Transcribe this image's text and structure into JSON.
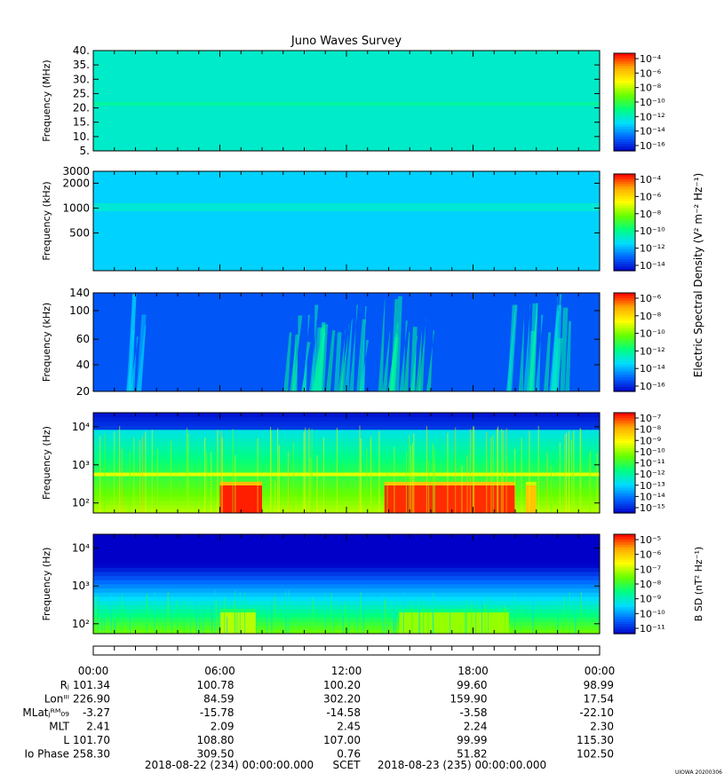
{
  "title": "Juno Waves Survey",
  "footer_stamp": "UIOWA 20200306",
  "shared_colorbar_label": "Electric Spectral Density (V² m⁻² Hz⁻¹)",
  "colors": {
    "colormap": [
      "#0000c8",
      "#0066ff",
      "#00ddff",
      "#00ff80",
      "#66ff00",
      "#ffff00",
      "#ffaa00",
      "#ff0000"
    ]
  },
  "chart_data": [
    {
      "type": "heatmap",
      "panel": "HFR high",
      "ylabel": "Frequency (MHz)",
      "yticks": [
        "40.",
        "35.",
        "30.",
        "25.",
        "20.",
        "15.",
        "10.",
        "5."
      ],
      "ylim": [
        3.8,
        41
      ],
      "colorbar": {
        "ticks": [
          "10⁻⁴",
          "10⁻⁶",
          "10⁻⁸",
          "10⁻¹⁰",
          "10⁻¹²",
          "10⁻¹⁴",
          "10⁻¹⁶"
        ],
        "range_exp": [
          -17,
          -4
        ]
      },
      "base_level": -12.5,
      "bands": [
        {
          "y": 21.2,
          "width": 1.3,
          "level": -11.8
        }
      ]
    },
    {
      "type": "heatmap",
      "panel": "HFR low",
      "ylabel": "Frequency (kHz)",
      "yticks": [
        "3000",
        "2000",
        "1000",
        "500"
      ],
      "ylim": [
        140,
        3000
      ],
      "colorbar": {
        "ticks": [
          "10⁻⁴",
          "10⁻⁶",
          "10⁻⁸",
          "10⁻¹⁰",
          "10⁻¹²",
          "10⁻¹⁴"
        ],
        "range_exp": [
          -15,
          -4
        ]
      },
      "base_level": -12.0,
      "bands": [
        {
          "y": 1000,
          "width": 250,
          "level": -11.3
        }
      ]
    },
    {
      "type": "heatmap",
      "panel": "LFR high",
      "ylabel": "Frequency (kHz)",
      "yticks": [
        "140",
        "100",
        "60",
        "40",
        "20"
      ],
      "ylim": [
        20,
        140
      ],
      "colorbar": {
        "ticks": [
          "10⁻⁶",
          "10⁻⁸",
          "10⁻¹⁰",
          "10⁻¹²",
          "10⁻¹⁴",
          "10⁻¹⁶"
        ],
        "range_exp": [
          -16,
          -6
        ]
      },
      "base_level": -14.8,
      "bursts": [
        {
          "t_start": 8.8,
          "t_end": 13.0,
          "level": -12.5
        },
        {
          "t_start": 13.5,
          "t_end": 16.0,
          "level": -12.2
        },
        {
          "t_start": 19.5,
          "t_end": 22.5,
          "level": -12.8
        },
        {
          "t_start": 1.5,
          "t_end": 2.5,
          "level": -13.5
        }
      ]
    },
    {
      "type": "heatmap",
      "panel": "LFR low",
      "ylabel": "Frequency (Hz)",
      "yticks": [
        "10⁴",
        "10³",
        "10²"
      ],
      "ylim": [
        50,
        20000
      ],
      "colorbar": {
        "ticks": [
          "10⁻⁷",
          "10⁻⁸",
          "10⁻⁹",
          "10⁻¹⁰",
          "10⁻¹¹",
          "10⁻¹²",
          "10⁻¹³",
          "10⁻¹⁴",
          "10⁻¹⁵"
        ],
        "range_exp": [
          -15,
          -7
        ]
      },
      "base_level": -11.5,
      "line": {
        "y": 500,
        "level": -9.5
      },
      "hot_regions": [
        {
          "t_start": 6.0,
          "t_end": 8.0,
          "level": -7.2
        },
        {
          "t_start": 13.8,
          "t_end": 20.0,
          "level": -7.3
        },
        {
          "t_start": 20.5,
          "t_end": 21.0,
          "level": -8.5
        }
      ]
    },
    {
      "type": "heatmap",
      "panel": "Magnetic",
      "ylabel": "Frequency (Hz)",
      "yticks": [
        "10⁴",
        "10³",
        "10²"
      ],
      "ylim": [
        50,
        20000
      ],
      "colorbar": {
        "label": "B SD (nT² Hz⁻¹)",
        "ticks": [
          "10⁻⁵",
          "10⁻⁶",
          "10⁻⁷",
          "10⁻⁸",
          "10⁻⁹",
          "10⁻¹⁰",
          "10⁻¹¹"
        ],
        "range_exp": [
          -11,
          -4.5
        ]
      },
      "base_level": -10.3,
      "hot_regions": [
        {
          "t_start": 6.0,
          "t_end": 7.7,
          "level": -6.8
        },
        {
          "t_start": 14.5,
          "t_end": 19.7,
          "level": -7.0
        }
      ]
    }
  ],
  "time_axis": {
    "ticks": [
      "00:00",
      "06:00",
      "12:00",
      "18:00",
      "00:00"
    ],
    "hours": [
      0,
      6,
      12,
      18,
      24
    ]
  },
  "ephemeris": {
    "labels": [
      "Rⱼ",
      "Lonᴵᴵᴵ",
      "MLatⱼᴿᴹ₀₉",
      "MLT",
      "L",
      "Io Phase"
    ],
    "rows": [
      [
        "101.34",
        "100.78",
        "100.20",
        "99.60",
        "98.99"
      ],
      [
        "226.90",
        "84.59",
        "302.20",
        "159.90",
        "17.54"
      ],
      [
        "-3.27",
        "-15.78",
        "-14.58",
        "-3.58",
        "-22.10"
      ],
      [
        "2.41",
        "2.09",
        "2.45",
        "2.24",
        "2.30"
      ],
      [
        "101.70",
        "108.80",
        "107.00",
        "99.99",
        "115.30"
      ],
      [
        "258.30",
        "309.50",
        "0.76",
        "51.82",
        "102.50"
      ]
    ]
  },
  "time_range": {
    "start": "2018-08-22 (234) 00:00:00.000",
    "label": "SCET",
    "end": "2018-08-23 (235) 00:00:00.000"
  }
}
